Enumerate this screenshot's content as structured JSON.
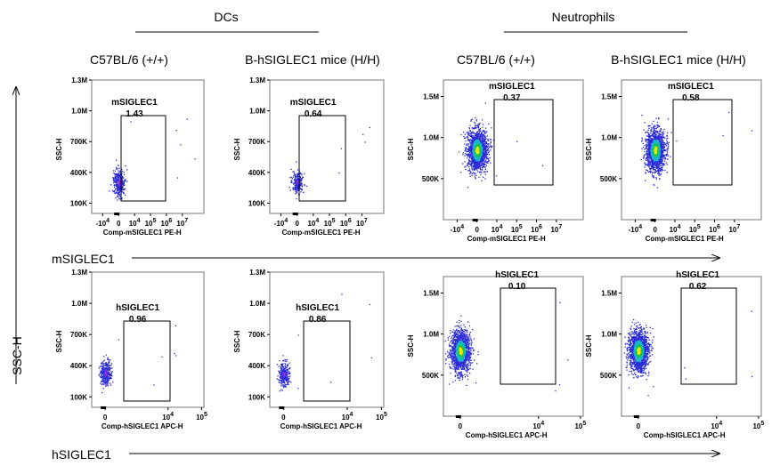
{
  "header": {
    "groups": [
      "DCs",
      "Neutrophils"
    ],
    "columns": [
      "C57BL/6 (+/+)",
      "B-hSIGLEC1 mice  (H/H)",
      "C57BL/6 (+/+)",
      "B-hSIGLEC1 mice (H/H)"
    ]
  },
  "axes": {
    "y_axis_label": "SSC-H",
    "row_axis_labels": [
      "mSIGLEC1",
      "hSIGLEC1"
    ]
  },
  "chart_data": {
    "type": "scatter",
    "title": "",
    "y_label": "SSC-H",
    "dc_y_ticks": [
      "100K",
      "400K",
      "700K",
      "1.0M",
      "1.3M"
    ],
    "neut_y_ticks": [
      "500K",
      "1.0M",
      "1.5M"
    ],
    "m_x_ticks": [
      "-10^4",
      "0",
      "10^4",
      "10^5",
      "10^6",
      "10^7"
    ],
    "h_x_ticks": [
      "0",
      "10^4",
      "10^5"
    ],
    "panels": [
      {
        "id": "dc-b6-m",
        "group": "DCs",
        "strain": "C57BL/6 (+/+)",
        "marker": "mSIGLEC1",
        "xlabel": "Comp-mSIGLEC1 PE-H",
        "ylabel": "SSC-H",
        "gate_label": "mSIGLEC1",
        "gate_percent": "1.43",
        "density": "low",
        "y_range": [
          0,
          1300000
        ],
        "cluster": {
          "x": "0",
          "y": 300000,
          "y_spread": 120000,
          "count": 350
        }
      },
      {
        "id": "dc-h-m",
        "group": "DCs",
        "strain": "B-hSIGLEC1 mice  (H/H)",
        "marker": "mSIGLEC1",
        "xlabel": "Comp-mSIGLEC1 PE-H",
        "ylabel": "SSC-H",
        "gate_label": "mSIGLEC1",
        "gate_percent": "0.64",
        "density": "low",
        "y_range": [
          0,
          1300000
        ],
        "cluster": {
          "x": "0",
          "y": 310000,
          "y_spread": 90000,
          "count": 260
        }
      },
      {
        "id": "neut-b6-m",
        "group": "Neutrophils",
        "strain": "C57BL/6 (+/+)",
        "marker": "mSIGLEC1",
        "xlabel": "Comp-mSIGLEC1 PE-H",
        "ylabel": "SSC-H",
        "gate_label": "mSIGLEC1",
        "gate_percent": "0.37",
        "density": "high",
        "y_range": [
          0,
          1700000
        ],
        "cluster": {
          "x": "0",
          "y": 850000,
          "y_spread": 230000,
          "count": 1600
        }
      },
      {
        "id": "neut-h-m",
        "group": "Neutrophils",
        "strain": "B-hSIGLEC1 mice (H/H)",
        "marker": "mSIGLEC1",
        "xlabel": "Comp-mSIGLEC1 PE-H",
        "ylabel": "SSC-H",
        "gate_label": "mSIGLEC1",
        "gate_percent": "0.58",
        "density": "high",
        "y_range": [
          0,
          1700000
        ],
        "cluster": {
          "x": "0",
          "y": 850000,
          "y_spread": 230000,
          "count": 1500
        }
      },
      {
        "id": "dc-b6-h",
        "group": "DCs",
        "strain": "C57BL/6 (+/+)",
        "marker": "hSIGLEC1",
        "xlabel": "Comp-hSIGLEC1 APC-H",
        "ylabel": "SSC-H",
        "gate_label": "hSIGLEC1",
        "gate_percent": "0.96",
        "density": "low",
        "y_range": [
          0,
          1300000
        ],
        "cluster": {
          "x": "0",
          "y": 330000,
          "y_spread": 110000,
          "count": 330
        }
      },
      {
        "id": "dc-h-h",
        "group": "DCs",
        "strain": "B-hSIGLEC1 mice  (H/H)",
        "marker": "hSIGLEC1",
        "xlabel": "Comp-hSIGLEC1 APC-H",
        "ylabel": "SSC-H",
        "gate_label": "hSIGLEC1",
        "gate_percent": "0.86",
        "density": "low",
        "y_range": [
          0,
          1300000
        ],
        "cluster": {
          "x": "0",
          "y": 320000,
          "y_spread": 100000,
          "count": 300
        }
      },
      {
        "id": "neut-b6-h",
        "group": "Neutrophils",
        "strain": "C57BL/6 (+/+)",
        "marker": "hSIGLEC1",
        "xlabel": "Comp-hSIGLEC1 APC-H",
        "ylabel": "SSC-H",
        "gate_label": "hSIGLEC1",
        "gate_percent": "0.10",
        "density": "high",
        "y_range": [
          0,
          1700000
        ],
        "cluster": {
          "x": "0",
          "y": 800000,
          "y_spread": 230000,
          "count": 1500
        }
      },
      {
        "id": "neut-h-h",
        "group": "Neutrophils",
        "strain": "B-hSIGLEC1 mice (H/H)",
        "marker": "hSIGLEC1",
        "xlabel": "Comp-hSIGLEC1 APC-H",
        "ylabel": "SSC-H",
        "gate_label": "hSIGLEC1",
        "gate_percent": "0.62",
        "density": "high",
        "y_range": [
          0,
          1700000
        ],
        "cluster": {
          "x": "0",
          "y": 800000,
          "y_spread": 230000,
          "count": 1500
        }
      }
    ]
  }
}
